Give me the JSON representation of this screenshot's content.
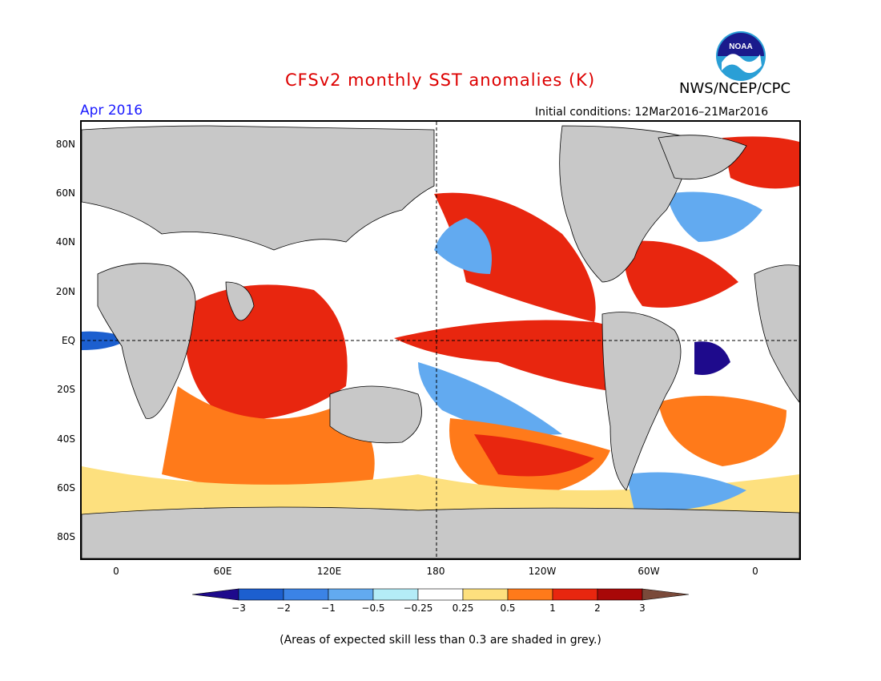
{
  "header": {
    "title": "CFSv2 monthly SST anomalies (K)",
    "month": "Apr 2016",
    "agency": "NWS/NCEP/CPC",
    "initial_conditions": "Initial conditions: 12Mar2016–21Mar2016",
    "logo_text": "NOAA"
  },
  "colors": {
    "title": "#dd0000",
    "month": "#1a1aff",
    "land": "#c8c8c8",
    "ocean_neutral": "#ffffff",
    "frame": "#000000"
  },
  "map": {
    "lat_labels": [
      "80N",
      "60N",
      "40N",
      "20N",
      "EQ",
      "20S",
      "40S",
      "60S",
      "80S"
    ],
    "lon_labels": [
      "0",
      "60E",
      "120E",
      "180",
      "120W",
      "60W",
      "0"
    ]
  },
  "colorbar": {
    "tick_labels": [
      "−3",
      "−2",
      "−1",
      "−0.5",
      "−0.25",
      "0.25",
      "0.5",
      "1",
      "2",
      "3"
    ],
    "bins": [
      {
        "range": "< -3",
        "color": "#1e0a8c"
      },
      {
        "range": "-3 to -2",
        "color": "#1c5fcf"
      },
      {
        "range": "-2 to -1",
        "color": "#3b83e6"
      },
      {
        "range": "-1 to -0.5",
        "color": "#62aaf0"
      },
      {
        "range": "-0.5 to -0.25",
        "color": "#b4ecf7"
      },
      {
        "range": "-0.25 to 0.25",
        "color": "#ffffff"
      },
      {
        "range": "0.25 to 0.5",
        "color": "#fde07e"
      },
      {
        "range": "0.5 to 1",
        "color": "#ff7a1a"
      },
      {
        "range": "1 to 2",
        "color": "#e8260f"
      },
      {
        "range": "2 to 3",
        "color": "#a80808"
      },
      {
        "range": "> 3",
        "color": "#7a4a3a"
      }
    ]
  },
  "footer": {
    "note": "(Areas of expected skill less than 0.3 are shaded in grey.)"
  }
}
